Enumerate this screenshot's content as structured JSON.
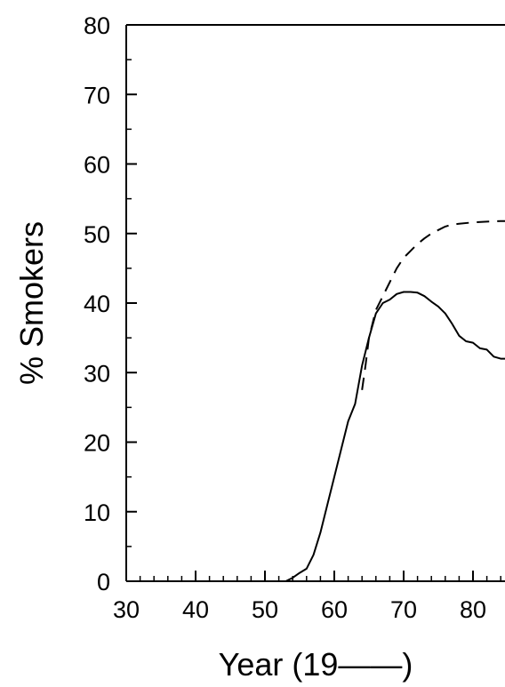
{
  "chart_data": {
    "type": "line",
    "title": "",
    "xlabel": "Year (19——)",
    "ylabel": "% Smokers",
    "xlim": [
      30,
      85
    ],
    "ylim": [
      0,
      80
    ],
    "xticks": [
      30,
      40,
      50,
      60,
      70,
      80
    ],
    "xtick_labels": [
      "30",
      "40",
      "50",
      "60",
      "70",
      "80"
    ],
    "yticks": [
      0,
      10,
      20,
      30,
      40,
      50,
      60,
      70,
      80
    ],
    "ytick_labels": [
      "0",
      "10",
      "20",
      "30",
      "40",
      "50",
      "60",
      "70",
      "80"
    ],
    "grid": false,
    "legend": "none",
    "series": [
      {
        "style": "solid",
        "color": "#000000",
        "x": [
          53,
          54,
          55,
          56,
          57,
          58,
          59,
          60,
          61,
          62,
          63,
          64,
          65,
          66,
          67,
          68,
          69,
          70,
          71,
          72,
          73,
          74,
          75,
          76,
          77,
          78,
          79,
          80,
          81,
          82,
          83,
          84,
          85
        ],
        "y": [
          0,
          0.5,
          1.2,
          1.8,
          3.8,
          7,
          11,
          15,
          19,
          23,
          25.5,
          31,
          35,
          38.5,
          40,
          40.5,
          41.3,
          41.6,
          41.6,
          41.5,
          41,
          40.2,
          39.5,
          38.5,
          37,
          35.3,
          34.5,
          34.3,
          33.5,
          33.3,
          32.3,
          32,
          32
        ]
      },
      {
        "style": "dashed",
        "color": "#000000",
        "x": [
          64,
          64.5,
          65,
          66,
          67,
          68,
          69,
          70,
          71,
          72,
          73,
          74,
          75,
          76,
          77,
          78,
          80,
          82,
          84,
          85
        ],
        "y": [
          27.5,
          31,
          35,
          39,
          41,
          43,
          45,
          46.5,
          47.5,
          48.5,
          49.3,
          50,
          50.5,
          51,
          51.3,
          51.4,
          51.6,
          51.7,
          51.8,
          51.8
        ]
      }
    ]
  }
}
